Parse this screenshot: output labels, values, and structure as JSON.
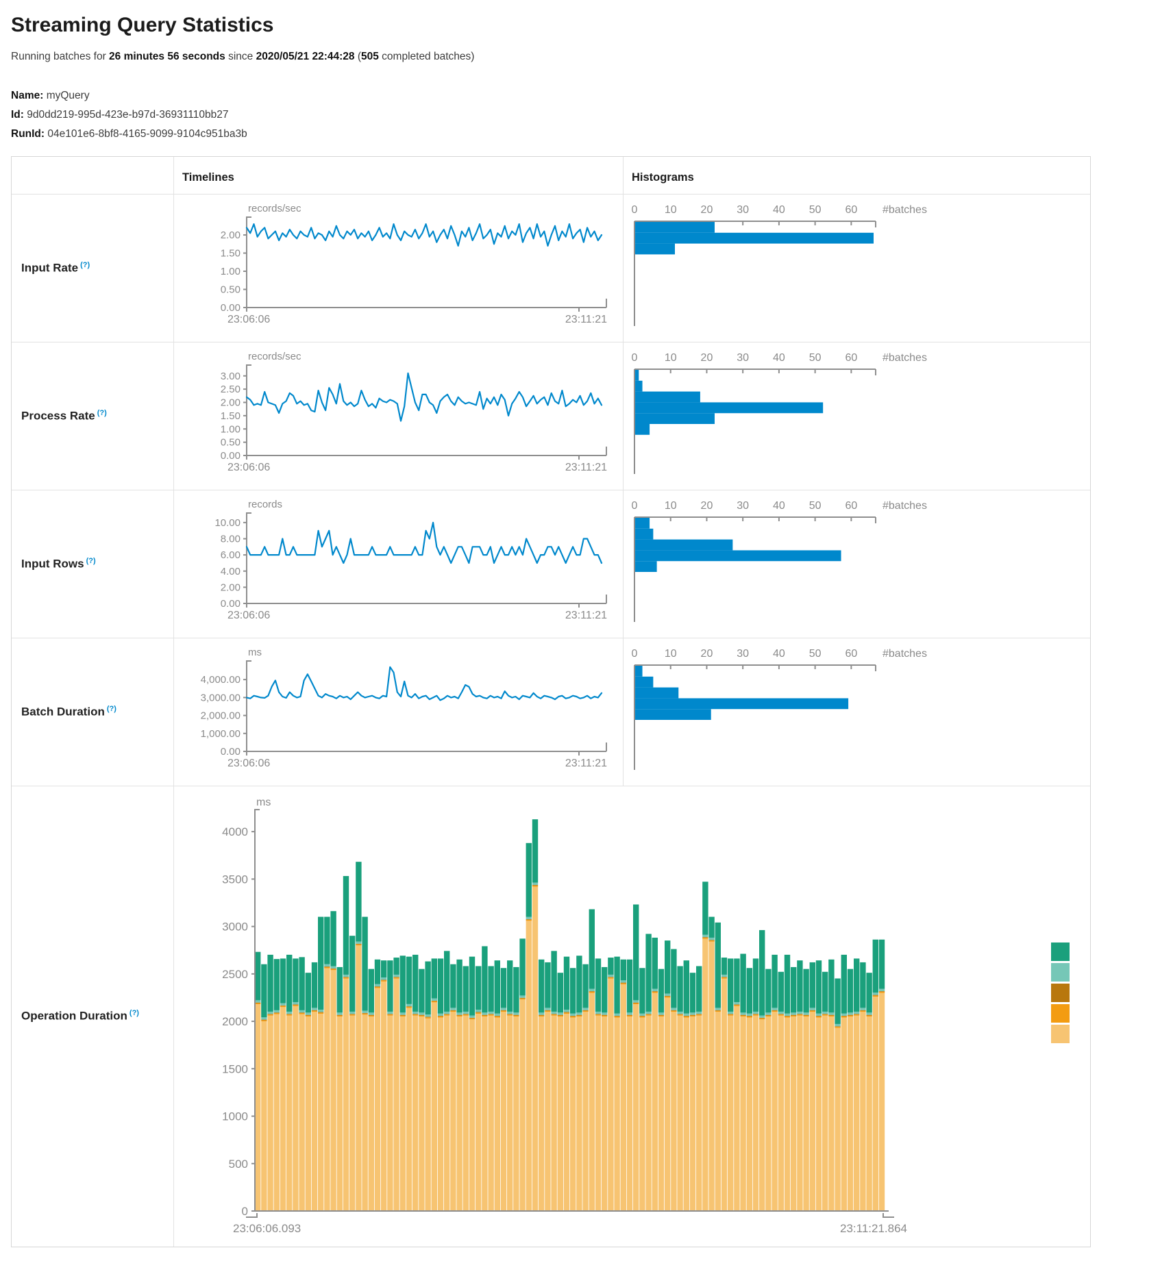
{
  "header": {
    "title": "Streaming Query Statistics",
    "running": {
      "prefix": "Running batches for ",
      "duration": "26 minutes 56 seconds",
      "since": " since ",
      "timestamp": "2020/05/21 22:44:28",
      "paren_open": " (",
      "batch_count": "505",
      "suffix": " completed batches)"
    }
  },
  "meta": {
    "name_label": "Name:",
    "name_value": "myQuery",
    "id_label": "Id:",
    "id_value": "9d0dd219-995d-423e-b97d-36931110bb27",
    "runid_label": "RunId:",
    "runid_value": "04e101e6-8bf8-4165-9099-9104c951ba3b"
  },
  "table": {
    "timelines_header": "Timelines",
    "histograms_header": "Histograms",
    "rows": [
      {
        "label": "Input Rate",
        "tooltip": "(?)"
      },
      {
        "label": "Process Rate",
        "tooltip": "(?)"
      },
      {
        "label": "Input Rows",
        "tooltip": "(?)"
      },
      {
        "label": "Batch Duration",
        "tooltip": "(?)"
      },
      {
        "label": "Operation Duration",
        "tooltip": "(?)"
      }
    ]
  },
  "colors": {
    "line_blue": "#0088cc",
    "axis_gray": "#8e8e8e",
    "tick_text": "#8a8a8a"
  },
  "operation_legend": {
    "colors": [
      "#1aa07c",
      "#76c7b7",
      "#b8770e",
      "#f39c12",
      "#f7c472"
    ]
  },
  "chart_data": [
    {
      "id": "input_rate_timeline",
      "type": "line",
      "unit": "records/sec",
      "x_start_label": "23:06:06",
      "x_end_label": "23:11:21",
      "yticks": [
        0,
        0.5,
        1,
        1.5,
        2
      ],
      "ylim": [
        0,
        2.34
      ],
      "tick_decimals": 2,
      "values": [
        2.2,
        2.05,
        2.3,
        1.95,
        2.1,
        2.2,
        1.9,
        2.0,
        2.1,
        1.85,
        2.05,
        1.95,
        2.15,
        2.0,
        1.9,
        2.1,
        2.0,
        1.95,
        2.2,
        1.9,
        2.05,
        2.0,
        1.85,
        2.1,
        1.95,
        2.25,
        2.0,
        1.9,
        2.1,
        2.0,
        2.15,
        1.9,
        2.05,
        1.95,
        2.1,
        1.85,
        2.0,
        2.2,
        1.95,
        2.05,
        1.9,
        2.3,
        2.0,
        1.85,
        2.1,
        2.0,
        1.95,
        2.15,
        1.9,
        2.05,
        2.3,
        1.95,
        2.1,
        1.8,
        2.0,
        2.15,
        1.9,
        2.25,
        2.0,
        1.7,
        2.1,
        1.95,
        2.2,
        1.85,
        2.05,
        2.3,
        1.9,
        2.0,
        2.15,
        1.75,
        2.05,
        1.95,
        2.25,
        1.9,
        2.1,
        2.0,
        2.3,
        1.8,
        2.05,
        2.2,
        1.9,
        2.3,
        1.95,
        2.1,
        1.7,
        2.0,
        2.25,
        1.85,
        2.1,
        1.95,
        2.3,
        1.9,
        2.05,
        2.15,
        1.8,
        2.2,
        1.95,
        2.1,
        1.85,
        2.0
      ]
    },
    {
      "id": "input_rate_histogram",
      "type": "bar",
      "xlabel": "#batches",
      "xticks": [
        0,
        10,
        20,
        30,
        40,
        50,
        60
      ],
      "xlim": [
        0,
        66
      ],
      "values": [
        22,
        66,
        11
      ]
    },
    {
      "id": "process_rate_timeline",
      "type": "line",
      "unit": "records/sec",
      "x_start_label": "23:06:06",
      "x_end_label": "23:11:21",
      "yticks": [
        0,
        0.5,
        1,
        1.5,
        2,
        2.5,
        3
      ],
      "ylim": [
        0,
        3.2
      ],
      "tick_decimals": 2,
      "values": [
        2.2,
        2.1,
        1.9,
        1.95,
        1.9,
        2.4,
        2.0,
        1.95,
        1.9,
        1.6,
        1.95,
        2.05,
        2.35,
        2.25,
        1.95,
        2.05,
        1.9,
        1.95,
        1.7,
        1.65,
        2.45,
        2.0,
        1.7,
        2.55,
        2.3,
        1.95,
        2.7,
        2.05,
        1.9,
        2.0,
        1.85,
        1.95,
        2.45,
        2.1,
        1.85,
        1.95,
        1.8,
        2.15,
        2.05,
        2.0,
        2.1,
        2.05,
        1.95,
        1.3,
        1.85,
        3.1,
        2.55,
        2.0,
        1.7,
        2.3,
        2.3,
        2.0,
        1.9,
        1.6,
        2.05,
        2.2,
        2.3,
        2.05,
        1.9,
        2.2,
        2.05,
        1.95,
        2.0,
        1.95,
        1.9,
        2.4,
        1.75,
        2.15,
        1.95,
        2.2,
        1.9,
        2.3,
        2.1,
        1.5,
        1.95,
        2.15,
        2.4,
        2.2,
        1.85,
        2.05,
        2.25,
        1.95,
        2.1,
        2.2,
        1.9,
        2.35,
        2.05,
        1.95,
        2.45,
        1.85,
        1.95,
        2.1,
        2.0,
        2.25,
        1.9,
        2.05,
        2.35,
        1.95,
        2.15,
        1.9
      ]
    },
    {
      "id": "process_rate_histogram",
      "type": "bar",
      "xlabel": "#batches",
      "xticks": [
        0,
        10,
        20,
        30,
        40,
        50,
        60
      ],
      "xlim": [
        0,
        66
      ],
      "values": [
        1,
        2,
        18,
        52,
        22,
        4
      ]
    },
    {
      "id": "input_rows_timeline",
      "type": "line",
      "unit": "records",
      "x_start_label": "23:06:06",
      "x_end_label": "23:11:21",
      "yticks": [
        0,
        2,
        4,
        6,
        8,
        10
      ],
      "ylim": [
        0,
        10.5
      ],
      "tick_decimals": 2,
      "values": [
        7,
        6,
        6,
        6,
        6,
        7,
        6,
        6,
        6,
        6,
        8,
        6,
        6,
        7,
        6,
        6,
        6,
        6,
        6,
        6,
        9,
        7,
        8,
        9,
        6,
        7,
        6,
        5,
        6,
        8,
        6,
        6,
        6,
        6,
        6,
        7,
        6,
        6,
        6,
        6,
        7,
        6,
        6,
        6,
        6,
        6,
        6,
        7,
        6,
        6,
        9,
        8,
        10,
        7,
        6,
        7,
        6,
        5,
        6,
        7,
        7,
        6,
        5,
        7,
        7,
        7,
        6,
        6,
        7,
        5,
        6,
        7,
        6,
        6,
        7,
        6,
        7,
        6,
        8,
        7,
        6,
        5,
        6,
        6,
        7,
        7,
        6,
        7,
        6,
        5,
        6,
        7,
        6,
        6,
        8,
        8,
        7,
        6,
        6,
        5
      ]
    },
    {
      "id": "input_rows_histogram",
      "type": "bar",
      "xlabel": "#batches",
      "xticks": [
        0,
        10,
        20,
        30,
        40,
        50,
        60
      ],
      "xlim": [
        0,
        66
      ],
      "values": [
        4,
        5,
        27,
        57,
        6
      ]
    },
    {
      "id": "batch_duration_timeline",
      "type": "line",
      "unit": "ms",
      "x_start_label": "23:06:06",
      "x_end_label": "23:11:21",
      "yticks": [
        0,
        1000,
        2000,
        3000,
        4000
      ],
      "ylim": [
        0,
        4730
      ],
      "tick_decimals": 2,
      "tick_comma": true,
      "values": [
        3000,
        2950,
        3100,
        3050,
        3000,
        2980,
        3100,
        3600,
        3950,
        3300,
        3050,
        2980,
        3300,
        3100,
        3000,
        3050,
        3950,
        4300,
        3900,
        3500,
        3100,
        3000,
        3200,
        3100,
        3050,
        2950,
        3100,
        3000,
        3050,
        2900,
        3100,
        3300,
        3100,
        3000,
        3050,
        3100,
        3000,
        2950,
        3100,
        3050,
        4700,
        4400,
        3300,
        3050,
        3900,
        3100,
        3000,
        3200,
        2950,
        3050,
        3100,
        2900,
        3000,
        3100,
        2850,
        2950,
        3100,
        3000,
        3050,
        2950,
        3300,
        3700,
        3600,
        3200,
        3050,
        3100,
        3000,
        2950,
        3100,
        3000,
        3050,
        2950,
        3350,
        3100,
        3000,
        3050,
        2900,
        3100,
        3050,
        3000,
        3250,
        3050,
        2950,
        3100,
        3050,
        3000,
        2900,
        3050,
        3100,
        2950,
        3000,
        3100,
        3050,
        2950,
        3000,
        3100,
        2950,
        3050,
        3000,
        3250
      ]
    },
    {
      "id": "batch_duration_histogram",
      "type": "bar",
      "xlabel": "#batches",
      "xticks": [
        0,
        10,
        20,
        30,
        40,
        50,
        60
      ],
      "xlim": [
        0,
        66
      ],
      "values": [
        2,
        5,
        12,
        59,
        21
      ]
    },
    {
      "id": "operation_duration",
      "type": "stacked-bar",
      "unit": "ms",
      "x_start_label": "23:06:06.093",
      "x_end_label": "23:11:21.864",
      "yticks": [
        0,
        500,
        1000,
        1500,
        2000,
        2500,
        3000,
        3500,
        4000
      ],
      "ylim": [
        0,
        4160
      ],
      "series": [
        {
          "name": "tan",
          "color": "#f7c472",
          "values": [
            2180,
            2000,
            2060,
            2075,
            2150,
            2060,
            2160,
            2075,
            2050,
            2100,
            2080,
            2560,
            2540,
            2050,
            2450,
            2060,
            2800,
            2070,
            2050,
            2350,
            2420,
            2060,
            2450,
            2050,
            2140,
            2060,
            2050,
            2030,
            2200,
            2040,
            2060,
            2100,
            2050,
            2060,
            2020,
            2080,
            2050,
            2060,
            2040,
            2100,
            2060,
            2050,
            2230,
            3060,
            3420,
            2050,
            2100,
            2060,
            2050,
            2080,
            2040,
            2050,
            2100,
            2300,
            2060,
            2050,
            2450,
            2040,
            2390,
            2050,
            2180,
            2040,
            2060,
            2300,
            2050,
            2250,
            2100,
            2060,
            2040,
            2050,
            2060,
            2870,
            2840,
            2100,
            2450,
            2060,
            2160,
            2050,
            2040,
            2060,
            2020,
            2050,
            2100,
            2060,
            2040,
            2050,
            2060,
            2050,
            2100,
            2040,
            2060,
            2050,
            1930,
            2040,
            2050,
            2060,
            2100,
            2050,
            2260,
            2300
          ]
        },
        {
          "name": "orange",
          "color": "#f39c12",
          "constant": 12
        },
        {
          "name": "dark-orange",
          "color": "#b8770e",
          "constant": 6
        },
        {
          "name": "light-teal",
          "color": "#76c7b7",
          "constant": 24
        },
        {
          "name": "teal",
          "color": "#1aa07c",
          "values": [
            510,
            560,
            600,
            540,
            470,
            600,
            460,
            560,
            420,
            480,
            980,
            500,
            580,
            480,
            1040,
            800,
            840,
            990,
            460,
            260,
            180,
            540,
            180,
            600,
            500,
            600,
            460,
            560,
            420,
            580,
            640,
            460,
            560,
            480,
            620,
            460,
            700,
            480,
            560,
            420,
            540,
            480,
            600,
            778,
            668,
            560,
            480,
            640,
            420,
            560,
            480,
            600,
            460,
            840,
            560,
            480,
            180,
            600,
            220,
            560,
            1010,
            480,
            820,
            540,
            460,
            560,
            620,
            480,
            560,
            420,
            480,
            560,
            220,
            900,
            180,
            560,
            460,
            620,
            480,
            560,
            900,
            460,
            560,
            420,
            620,
            480,
            540,
            460,
            480,
            560,
            420,
            560,
            480,
            620,
            460,
            560,
            480,
            420,
            560,
            520
          ]
        }
      ]
    }
  ]
}
